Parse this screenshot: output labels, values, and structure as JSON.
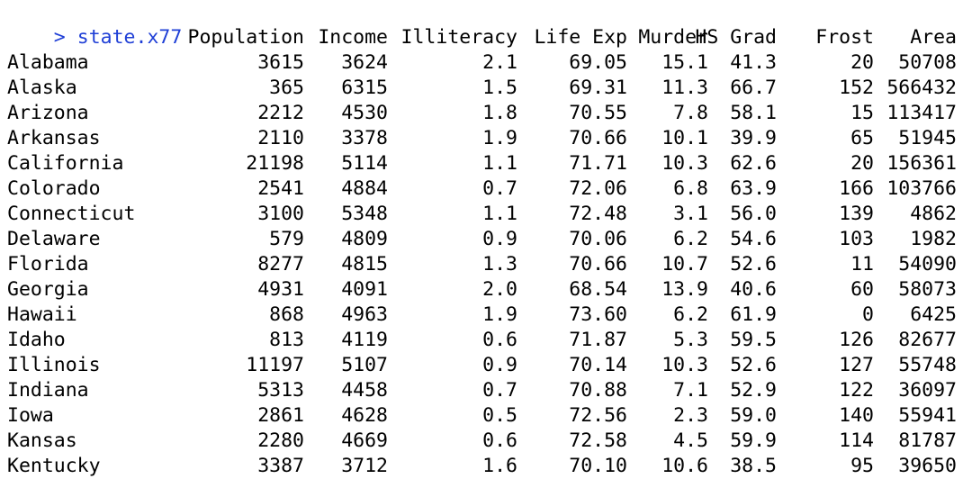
{
  "console": {
    "prompt_symbol": ">",
    "command": "state.x77",
    "prompt_color": "#1f3fd6"
  },
  "table": {
    "columns": [
      "Population",
      "Income",
      "Illiteracy",
      "Life Exp",
      "Murder",
      "HS Grad",
      "Frost",
      "Area"
    ],
    "rows": [
      {
        "name": "Alabama",
        "values": [
          "3615",
          "3624",
          "2.1",
          "69.05",
          "15.1",
          "41.3",
          "20",
          "50708"
        ]
      },
      {
        "name": "Alaska",
        "values": [
          "365",
          "6315",
          "1.5",
          "69.31",
          "11.3",
          "66.7",
          "152",
          "566432"
        ]
      },
      {
        "name": "Arizona",
        "values": [
          "2212",
          "4530",
          "1.8",
          "70.55",
          "7.8",
          "58.1",
          "15",
          "113417"
        ]
      },
      {
        "name": "Arkansas",
        "values": [
          "2110",
          "3378",
          "1.9",
          "70.66",
          "10.1",
          "39.9",
          "65",
          "51945"
        ]
      },
      {
        "name": "California",
        "values": [
          "21198",
          "5114",
          "1.1",
          "71.71",
          "10.3",
          "62.6",
          "20",
          "156361"
        ]
      },
      {
        "name": "Colorado",
        "values": [
          "2541",
          "4884",
          "0.7",
          "72.06",
          "6.8",
          "63.9",
          "166",
          "103766"
        ]
      },
      {
        "name": "Connecticut",
        "values": [
          "3100",
          "5348",
          "1.1",
          "72.48",
          "3.1",
          "56.0",
          "139",
          "4862"
        ]
      },
      {
        "name": "Delaware",
        "values": [
          "579",
          "4809",
          "0.9",
          "70.06",
          "6.2",
          "54.6",
          "103",
          "1982"
        ]
      },
      {
        "name": "Florida",
        "values": [
          "8277",
          "4815",
          "1.3",
          "70.66",
          "10.7",
          "52.6",
          "11",
          "54090"
        ]
      },
      {
        "name": "Georgia",
        "values": [
          "4931",
          "4091",
          "2.0",
          "68.54",
          "13.9",
          "40.6",
          "60",
          "58073"
        ]
      },
      {
        "name": "Hawaii",
        "values": [
          "868",
          "4963",
          "1.9",
          "73.60",
          "6.2",
          "61.9",
          "0",
          "6425"
        ]
      },
      {
        "name": "Idaho",
        "values": [
          "813",
          "4119",
          "0.6",
          "71.87",
          "5.3",
          "59.5",
          "126",
          "82677"
        ]
      },
      {
        "name": "Illinois",
        "values": [
          "11197",
          "5107",
          "0.9",
          "70.14",
          "10.3",
          "52.6",
          "127",
          "55748"
        ]
      },
      {
        "name": "Indiana",
        "values": [
          "5313",
          "4458",
          "0.7",
          "70.88",
          "7.1",
          "52.9",
          "122",
          "36097"
        ]
      },
      {
        "name": "Iowa",
        "values": [
          "2861",
          "4628",
          "0.5",
          "72.56",
          "2.3",
          "59.0",
          "140",
          "55941"
        ]
      },
      {
        "name": "Kansas",
        "values": [
          "2280",
          "4669",
          "0.6",
          "72.58",
          "4.5",
          "59.9",
          "114",
          "81787"
        ]
      },
      {
        "name": "Kentucky",
        "values": [
          "3387",
          "3712",
          "1.6",
          "70.10",
          "10.6",
          "38.5",
          "95",
          "39650"
        ]
      }
    ]
  }
}
